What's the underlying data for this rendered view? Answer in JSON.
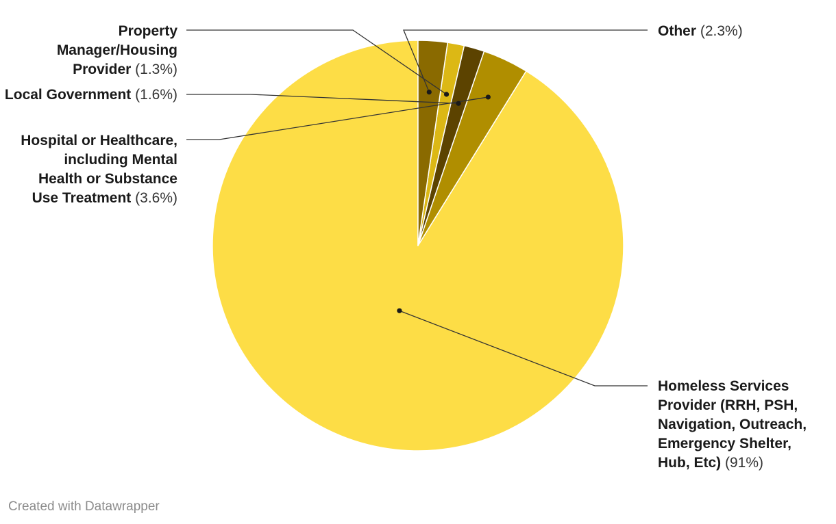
{
  "chart_data": {
    "type": "pie",
    "title": "",
    "slices": [
      {
        "name_lines": [
          "Homeless Services",
          "Provider (RRH, PSH,",
          "Navigation, Outreach,",
          "Emergency Shelter,",
          "Hub, Etc)"
        ],
        "value": 91,
        "pct_label": "(91%)",
        "color": "#fddd46"
      },
      {
        "name_lines": [
          "Hospital or Healthcare,",
          "including Mental",
          "Health or Substance",
          "Use Treatment"
        ],
        "value": 3.6,
        "pct_label": "(3.6%)",
        "color": "#b08e00"
      },
      {
        "name_lines": [
          "Local Government"
        ],
        "value": 1.6,
        "pct_label": "(1.6%)",
        "color": "#5c4300"
      },
      {
        "name_lines": [
          "Property",
          "Manager/Housing",
          "Provider"
        ],
        "value": 1.3,
        "pct_label": "(1.3%)",
        "color": "#dcb815"
      },
      {
        "name_lines": [
          "Other"
        ],
        "value": 2.3,
        "pct_label": "(2.3%)",
        "color": "#8a6a00"
      }
    ],
    "start_angle_deg": 0,
    "direction": "counterclockwise",
    "label_placement": "outside-with-leader-lines"
  },
  "footer": {
    "credit": "Created with Datawrapper"
  }
}
